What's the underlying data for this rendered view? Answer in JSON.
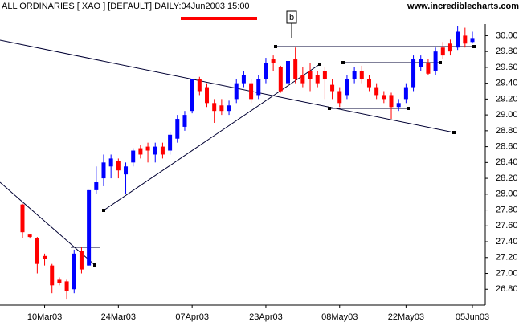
{
  "chart_data": {
    "type": "candlestick",
    "title": "ALL ORDINARIES [ XAO ] [DEFAULT]:DAILY:04Jun2003 15:00",
    "source": "www.incrediblecharts.com",
    "annotation": "b",
    "categories": [
      null,
      null,
      null,
      "10Mar03",
      null,
      null,
      null,
      null,
      null,
      null,
      null,
      null,
      null,
      "24Mar03",
      null,
      null,
      null,
      null,
      null,
      null,
      null,
      null,
      null,
      "07Apr03",
      null,
      null,
      null,
      null,
      null,
      null,
      null,
      null,
      null,
      "23Apr03",
      null,
      null,
      null,
      null,
      null,
      null,
      null,
      null,
      null,
      "08May03",
      null,
      null,
      null,
      null,
      null,
      null,
      null,
      null,
      "22May03",
      null,
      null,
      null,
      null,
      null,
      null,
      null,
      null,
      "05Jun03"
    ],
    "open": [
      27.87,
      27.49,
      27.45,
      27.22,
      27.1,
      26.92,
      26.9,
      26.8,
      27.28,
      27.1,
      28.05,
      28.2,
      28.35,
      28.42,
      28.25,
      28.4,
      28.58,
      28.6,
      28.5,
      28.6,
      28.55,
      28.7,
      28.85,
      29.05,
      29.45,
      29.35,
      29.15,
      29.12,
      29.05,
      29.2,
      29.4,
      29.4,
      29.25,
      29.45,
      29.7,
      29.6,
      29.4,
      29.7,
      29.5,
      29.55,
      29.5,
      29.55,
      29.38,
      29.3,
      29.25,
      29.45,
      29.55,
      29.45,
      29.35,
      29.25,
      29.25,
      29.1,
      29.2,
      29.35,
      29.6,
      29.65,
      29.55,
      29.85,
      29.9,
      29.85,
      30.0,
      29.92
    ],
    "high": [
      27.88,
      27.5,
      27.46,
      27.25,
      27.12,
      26.95,
      26.92,
      27.3,
      27.33,
      28.05,
      28.35,
      28.5,
      28.5,
      28.45,
      28.4,
      28.58,
      28.62,
      28.65,
      28.65,
      28.65,
      28.78,
      29.0,
      29.05,
      29.45,
      29.48,
      29.4,
      29.2,
      29.2,
      29.18,
      29.45,
      29.55,
      29.45,
      29.5,
      29.72,
      29.75,
      29.62,
      29.7,
      29.85,
      29.6,
      29.65,
      29.55,
      29.6,
      29.45,
      29.35,
      29.5,
      29.6,
      29.62,
      29.5,
      29.4,
      29.3,
      29.28,
      29.2,
      29.4,
      29.75,
      29.75,
      29.7,
      29.85,
      29.92,
      29.95,
      30.12,
      30.1,
      30.05
    ],
    "low": [
      27.45,
      27.44,
      27.0,
      27.1,
      26.75,
      26.85,
      26.68,
      26.75,
      27.0,
      27.1,
      28.0,
      28.1,
      28.2,
      28.2,
      28.0,
      28.35,
      28.45,
      28.4,
      28.4,
      28.45,
      28.5,
      28.65,
      28.8,
      29.02,
      29.25,
      29.1,
      28.9,
      29.0,
      29.0,
      29.15,
      29.35,
      29.15,
      29.2,
      29.4,
      29.55,
      29.28,
      29.35,
      29.4,
      29.35,
      29.3,
      29.35,
      29.2,
      29.2,
      29.1,
      29.2,
      29.4,
      29.4,
      29.3,
      29.2,
      29.15,
      28.95,
      29.05,
      29.15,
      29.3,
      29.55,
      29.5,
      29.5,
      29.7,
      29.75,
      29.82,
      29.85,
      29.9
    ],
    "close": [
      27.52,
      27.46,
      27.12,
      27.18,
      26.85,
      26.88,
      26.78,
      27.25,
      27.05,
      28.05,
      28.15,
      28.4,
      28.45,
      28.3,
      28.35,
      28.55,
      28.5,
      28.55,
      28.6,
      28.5,
      28.75,
      28.95,
      29.0,
      29.45,
      29.3,
      29.15,
      29.05,
      29.05,
      29.12,
      29.4,
      29.5,
      29.2,
      29.45,
      29.65,
      29.65,
      29.3,
      29.68,
      29.45,
      29.4,
      29.45,
      29.4,
      29.45,
      29.3,
      29.15,
      29.45,
      29.55,
      29.45,
      29.35,
      29.25,
      29.2,
      29.1,
      29.15,
      29.35,
      29.7,
      29.7,
      29.52,
      29.8,
      29.75,
      29.8,
      30.05,
      29.9,
      29.97
    ],
    "up_color": "#0000ff",
    "down_color": "#ff0000",
    "ylim": [
      26.6,
      30.45
    ],
    "yticks": [
      {
        "value": 26.8,
        "label": "26.80"
      },
      {
        "value": 27.0,
        "label": "27.00"
      },
      {
        "value": 27.2,
        "label": "27.20"
      },
      {
        "value": 27.4,
        "label": "27.40"
      },
      {
        "value": 27.6,
        "label": "27.60"
      },
      {
        "value": 27.8,
        "label": "27.80"
      },
      {
        "value": 28.0,
        "label": "28.00"
      },
      {
        "value": 28.2,
        "label": "28.20"
      },
      {
        "value": 28.4,
        "label": "28.40"
      },
      {
        "value": 28.6,
        "label": "28.60"
      },
      {
        "value": 28.8,
        "label": "28.80"
      },
      {
        "value": 29.0,
        "label": "29.00"
      },
      {
        "value": 29.2,
        "label": "29.20"
      },
      {
        "value": 29.4,
        "label": "29.40"
      },
      {
        "value": 29.6,
        "label": "29.60"
      },
      {
        "value": 29.8,
        "label": "29.80"
      },
      {
        "value": 30.0,
        "label": "30.00"
      }
    ]
  }
}
